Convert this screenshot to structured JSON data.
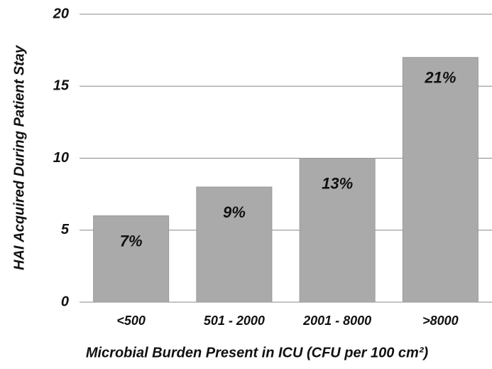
{
  "chart_data": {
    "type": "bar",
    "y_label": "HAI Acquired During Patient Stay",
    "x_label": "Microbial Burden Present in ICU (CFU per 100 cm²)",
    "categories": [
      "<500",
      "501 - 2000",
      "2001 - 8000",
      ">8000"
    ],
    "values": [
      6,
      8,
      10,
      17
    ],
    "annotations": [
      "7%",
      "9%",
      "13%",
      "21%"
    ],
    "color": "#aaaaaa",
    "ylim": [
      0,
      20
    ],
    "yticks": [
      0,
      5,
      10,
      15,
      20
    ],
    "grid": true
  }
}
